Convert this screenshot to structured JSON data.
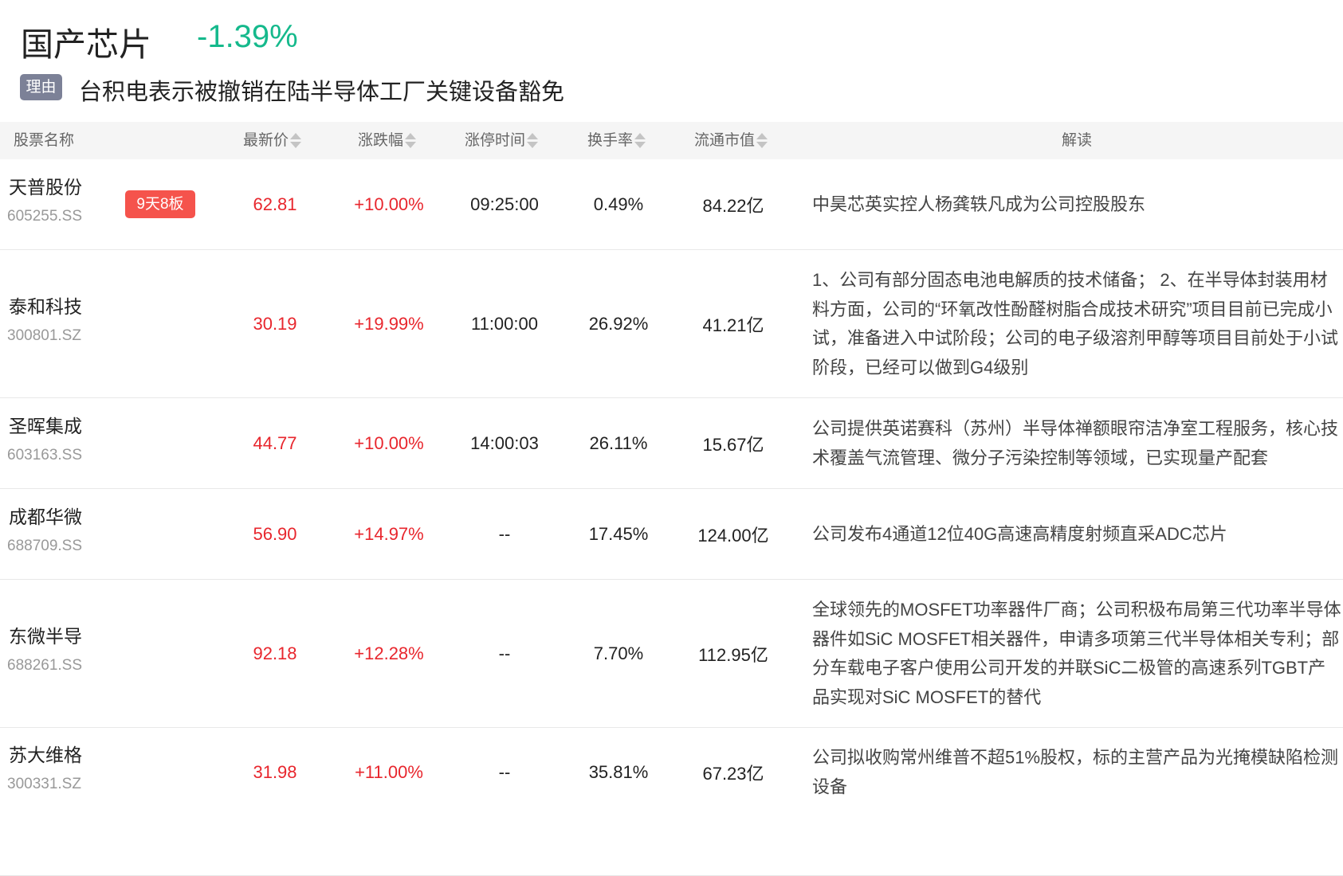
{
  "header": {
    "title": "国产芯片",
    "change": "-1.39%",
    "reason_tag": "理由",
    "reason": "台积电表示被撤销在陆半导体工厂关键设备豁免"
  },
  "colors": {
    "up": "#e8262d",
    "down": "#15b98c",
    "badge": "#f5534c"
  },
  "columns": [
    "股票名称",
    "最新价",
    "涨跌幅",
    "涨停时间",
    "换手率",
    "流通市值",
    "解读"
  ],
  "rows": [
    {
      "name": "天普股份",
      "code": "605255.SS",
      "badge": "9天8板",
      "price": "62.81",
      "change": "+10.00%",
      "limit_time": "09:25:00",
      "turnover": "0.49%",
      "mcap": "84.22亿",
      "desc": "中昊芯英实控人杨龚轶凡成为公司控股股东"
    },
    {
      "name": "泰和科技",
      "code": "300801.SZ",
      "price": "30.19",
      "change": "+19.99%",
      "limit_time": "11:00:00",
      "turnover": "26.92%",
      "mcap": "41.21亿",
      "desc": "1、公司有部分固态电池电解质的技术储备； 2、在半导体封装用材料方面，公司的“环氧改性酚醛树脂合成技术研究”项目目前已完成小试，准备进入中试阶段；公司的电子级溶剂甲醇等项目目前处于小试阶段，已经可以做到G4级别"
    },
    {
      "name": "圣晖集成",
      "code": "603163.SS",
      "price": "44.77",
      "change": "+10.00%",
      "limit_time": "14:00:03",
      "turnover": "26.11%",
      "mcap": "15.67亿",
      "desc": "公司提供英诺赛科（苏州）半导体禅额眼帘洁净室工程服务，核心技术覆盖气流管理、微分子污染控制等领域，已实现量产配套"
    },
    {
      "name": "成都华微",
      "code": "688709.SS",
      "price": "56.90",
      "change": "+14.97%",
      "limit_time": "--",
      "turnover": "17.45%",
      "mcap": "124.00亿",
      "desc": "公司发布4通道12位40G高速高精度射频直采ADC芯片"
    },
    {
      "name": "东微半导",
      "code": "688261.SS",
      "price": "92.18",
      "change": "+12.28%",
      "limit_time": "--",
      "turnover": "7.70%",
      "mcap": "112.95亿",
      "desc": "全球领先的MOSFET功率器件厂商；公司积极布局第三代功率半导体器件如SiC MOSFET相关器件，申请多项第三代半导体相关专利；部分车载电子客户使用公司开发的并联SiC二极管的高速系列TGBT产品实现对SiC MOSFET的替代"
    },
    {
      "name": "苏大维格",
      "code": "300331.SZ",
      "price": "31.98",
      "change": "+11.00%",
      "limit_time": "--",
      "turnover": "35.81%",
      "mcap": "67.23亿",
      "desc": "公司拟收购常州维普不超51%股权，标的主营产品为光掩模缺陷检测设备"
    }
  ]
}
